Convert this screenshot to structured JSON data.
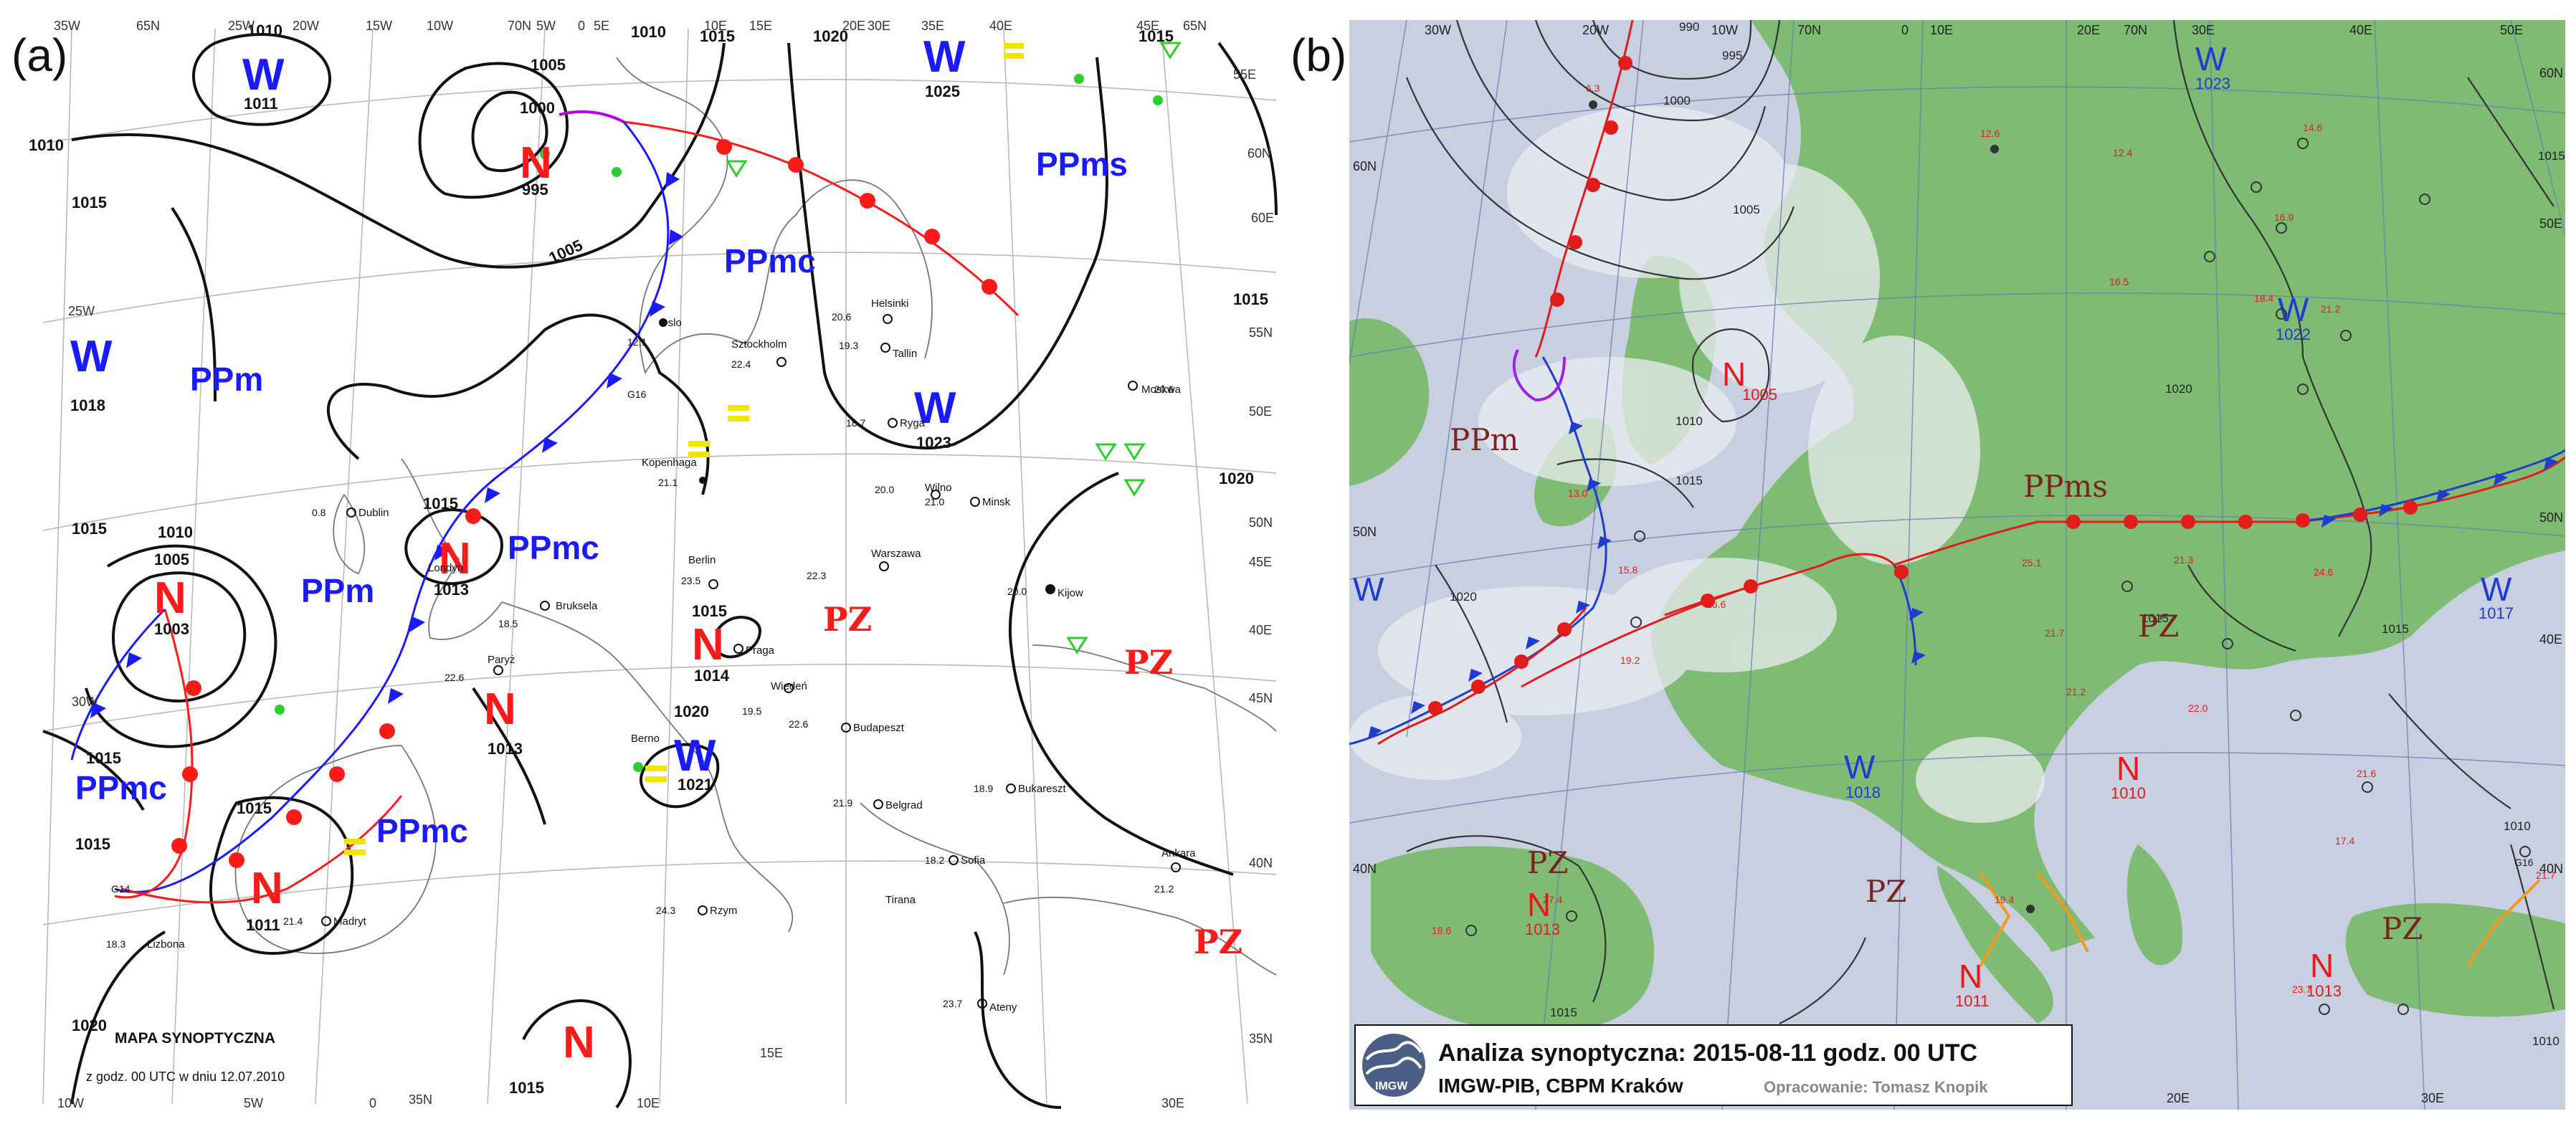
{
  "labels": {
    "a": "(a)",
    "b": "(b)"
  },
  "map_a": {
    "caption_title": "MAPA SYNOPTYCZNA",
    "caption_sub": "z godz. 00 UTC w dniu 12.07.2010",
    "isobars": [
      "1010",
      "1010",
      "1005",
      "1000",
      "1005",
      "1010",
      "1015",
      "1020",
      "1015",
      "1015",
      "1015",
      "1015",
      "1010",
      "1005",
      "1015",
      "1020",
      "1015",
      "1020",
      "1015",
      "1015",
      "1015",
      "1020",
      "1015"
    ],
    "systems": [
      {
        "letter": "W",
        "pressure": "1011",
        "color": "#1a1aff"
      },
      {
        "letter": "N",
        "pressure": "995",
        "color": "#ff1a1a"
      },
      {
        "letter": "W",
        "pressure": "1025",
        "color": "#1a1aff"
      },
      {
        "letter": "W",
        "pressure": "1018",
        "color": "#1a1aff"
      },
      {
        "letter": "W",
        "pressure": "1023",
        "color": "#1a1aff"
      },
      {
        "letter": "N",
        "pressure": "1003",
        "color": "#ff1a1a"
      },
      {
        "letter": "N",
        "pressure": "1013",
        "color": "#ff1a1a"
      },
      {
        "letter": "N",
        "pressure": "1013",
        "color": "#ff1a1a"
      },
      {
        "letter": "N",
        "pressure": "1014",
        "color": "#ff1a1a"
      },
      {
        "letter": "W",
        "pressure": "1021",
        "color": "#1a1aff"
      },
      {
        "letter": "N",
        "pressure": "1011",
        "color": "#ff1a1a"
      },
      {
        "letter": "N",
        "pressure": "",
        "color": "#ff1a1a"
      }
    ],
    "masses": [
      "PPms",
      "PPmc",
      "PPm",
      "PPmc",
      "PPm",
      "PPmc",
      "PPmc"
    ],
    "pz": [
      "PZ",
      "PZ",
      "PZ"
    ],
    "grid": [
      "35W",
      "65N",
      "25W",
      "20W",
      "15W",
      "10W",
      "70N",
      "5W",
      "0",
      "5E",
      "10E",
      "15E",
      "20E",
      "30E",
      "35E",
      "40E",
      "45E",
      "65N",
      "55E",
      "60N",
      "60E",
      "55N",
      "50E",
      "50N",
      "45E",
      "40E",
      "45N",
      "40N",
      "35N",
      "10W",
      "5W",
      "0",
      "35N",
      "10E",
      "15E",
      "30E",
      "25W",
      "30W"
    ],
    "cities": [
      "Helsinki",
      "Sztockholm",
      "Tallin",
      "Oslo",
      "Moskwa",
      "Ryga",
      "Kopenhaga",
      "Wilno",
      "Minsk",
      "Dublin",
      "Warszawa",
      "Kijow",
      "Londyn",
      "Berlin",
      "Bruksela",
      "Praga",
      "Paryż",
      "Wiedeń",
      "Budapeszt",
      "Berno",
      "Bukareszt",
      "Belgrad",
      "Sofia",
      "Madryt",
      "Lizbona",
      "Ankara",
      "Tirana",
      "Rzym",
      "Ateny"
    ],
    "temps": [
      "20.6",
      "19.3",
      "22.4",
      "12.1",
      "18.7",
      "21.1",
      "20.0",
      "21.0",
      "0.8",
      "22.3",
      "23.5",
      "18.5",
      "22.6",
      "19.5",
      "22.6",
      "20.0",
      "18.9",
      "21.9",
      "18.2",
      "21.2",
      "24.3",
      "23.7",
      "18.3",
      "21.4",
      "20.6",
      "G16",
      "G14"
    ]
  },
  "map_b": {
    "title": "Analiza synoptyczna: 2015-08-11 godz. 00 UTC",
    "subtitle": "IMGW-PIB, CBPM Kraków",
    "author": "Opracowanie: Tomasz Knopik",
    "logo": "IMGW",
    "isobars": [
      "990",
      "995",
      "1000",
      "1005",
      "1010",
      "1015",
      "1020",
      "1015",
      "1020",
      "1015",
      "1010",
      "1015",
      "1015",
      "1010"
    ],
    "systems": [
      {
        "letter": "W",
        "pressure": "1023",
        "color": "#1e3ccf"
      },
      {
        "letter": "W",
        "pressure": "1022",
        "color": "#1e3ccf"
      },
      {
        "letter": "N",
        "pressure": "1005",
        "color": "#e31b1b"
      },
      {
        "letter": "W",
        "pressure": "",
        "color": "#1e3ccf"
      },
      {
        "letter": "W",
        "pressure": "1017",
        "color": "#1e3ccf"
      },
      {
        "letter": "W",
        "pressure": "1018",
        "color": "#1e3ccf"
      },
      {
        "letter": "N",
        "pressure": "1010",
        "color": "#e31b1b"
      },
      {
        "letter": "N",
        "pressure": "1013",
        "color": "#e31b1b"
      },
      {
        "letter": "N",
        "pressure": "1011",
        "color": "#e31b1b"
      },
      {
        "letter": "N",
        "pressure": "1013",
        "color": "#e31b1b"
      }
    ],
    "masses": [
      "PPm",
      "PPms",
      "PZ",
      "PZ",
      "PZ",
      "PZ"
    ],
    "grid": [
      "30W",
      "20W",
      "10W",
      "70N",
      "0",
      "10E",
      "20E",
      "70N",
      "30E",
      "40E",
      "50E",
      "60N",
      "60N",
      "50E",
      "50N",
      "50N",
      "40E",
      "40N",
      "40N",
      "20E",
      "30E"
    ],
    "temps": [
      "6.3",
      "12.6",
      "14.6",
      "12.4",
      "16.9",
      "16.5",
      "18.4",
      "21.2",
      "13.0",
      "15.8",
      "16.6",
      "25.1",
      "21.3",
      "24.6",
      "19.2",
      "21.7",
      "21.2",
      "22.0",
      "21.6",
      "17.4",
      "18.6",
      "27.4",
      "19.4",
      "23.7",
      "G16",
      "21.7"
    ]
  }
}
